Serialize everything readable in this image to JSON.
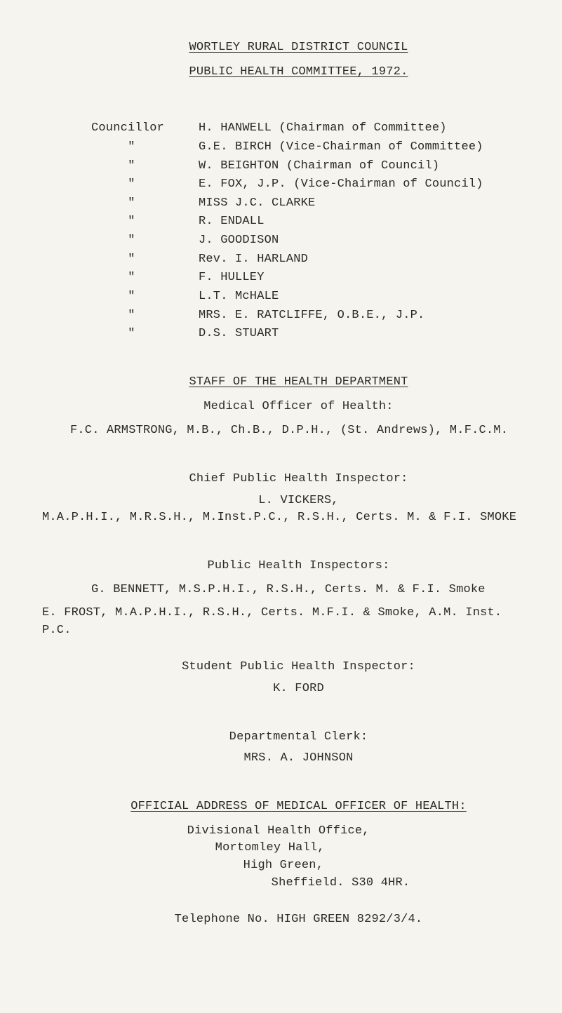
{
  "header": {
    "org": "WORTLEY RURAL DISTRICT COUNCIL",
    "committee": "PUBLIC HEALTH COMMITTEE, 1972."
  },
  "councillors": {
    "lead_label": "Councillor",
    "ditto_mark": "\"",
    "members": [
      "H. HANWELL (Chairman of Committee)",
      "G.E. BIRCH (Vice-Chairman of Committee)",
      "W. BEIGHTON (Chairman of Council)",
      "E. FOX, J.P. (Vice-Chairman of Council)",
      "MISS J.C. CLARKE",
      "R. ENDALL",
      "J. GOODISON",
      "Rev. I. HARLAND",
      "F. HULLEY",
      "L.T. McHALE",
      "MRS. E. RATCLIFFE, O.B.E., J.P.",
      "D.S. STUART"
    ]
  },
  "staff_heading": "STAFF OF THE HEALTH DEPARTMENT",
  "moh": {
    "title": "Medical Officer of Health:",
    "person": "F.C. ARMSTRONG, M.B., Ch.B., D.P.H., (St. Andrews), M.F.C.M."
  },
  "cphi": {
    "title": "Chief Public Health Inspector:",
    "person_name": "L. VICKERS,",
    "person_quals": "M.A.P.H.I., M.R.S.H., M.Inst.P.C., R.S.H., Certs. M. & F.I. SMOKE"
  },
  "phi": {
    "title": "Public Health Inspectors:",
    "people": [
      "G. BENNETT, M.S.P.H.I., R.S.H., Certs. M. & F.I. Smoke",
      "E. FROST, M.A.P.H.I., R.S.H., Certs. M.F.I. & Smoke, A.M. Inst. P.C."
    ]
  },
  "sphi": {
    "title": "Student Public Health Inspector:",
    "person": "K. FORD"
  },
  "clerk": {
    "title": "Departmental Clerk:",
    "person": "MRS. A. JOHNSON"
  },
  "address": {
    "heading": "OFFICIAL ADDRESS OF MEDICAL OFFICER OF HEALTH:",
    "lines": [
      "Divisional Health Office,",
      "Mortomley Hall,",
      "High Green,",
      "Sheffield.  S30 4HR."
    ],
    "tel": "Telephone No. HIGH GREEN 8292/3/4."
  }
}
